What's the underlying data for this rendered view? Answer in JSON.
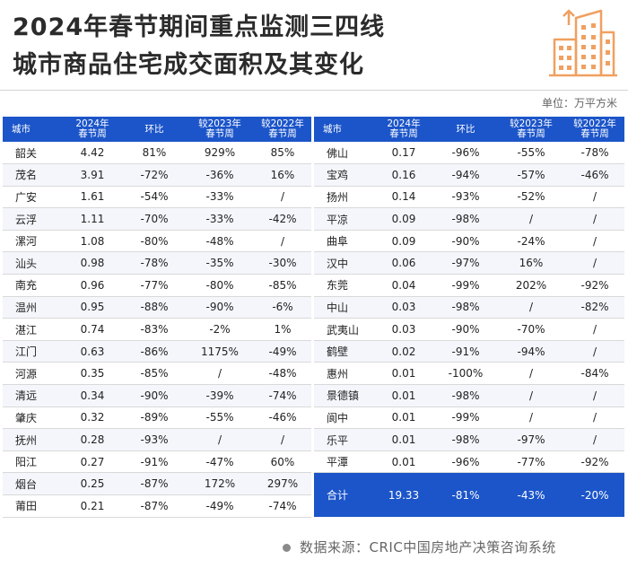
{
  "title_line1": "2024年春节期间重点监测三四线",
  "title_line2": "城市商品住宅成交面积及其变化",
  "unit": "单位：万平方米",
  "headers": [
    "城市",
    "2024年\n春节周",
    "环比",
    "较2023年\n春节周",
    "较2022年\n春节周"
  ],
  "left_rows": [
    [
      "韶关",
      "4.42",
      "81%",
      "929%",
      "85%"
    ],
    [
      "茂名",
      "3.91",
      "-72%",
      "-36%",
      "16%"
    ],
    [
      "广安",
      "1.61",
      "-54%",
      "-33%",
      "/"
    ],
    [
      "云浮",
      "1.11",
      "-70%",
      "-33%",
      "-42%"
    ],
    [
      "漯河",
      "1.08",
      "-80%",
      "-48%",
      "/"
    ],
    [
      "汕头",
      "0.98",
      "-78%",
      "-35%",
      "-30%"
    ],
    [
      "南充",
      "0.96",
      "-77%",
      "-80%",
      "-85%"
    ],
    [
      "温州",
      "0.95",
      "-88%",
      "-90%",
      "-6%"
    ],
    [
      "湛江",
      "0.74",
      "-83%",
      "-2%",
      "1%"
    ],
    [
      "江门",
      "0.63",
      "-86%",
      "1175%",
      "-49%"
    ],
    [
      "河源",
      "0.35",
      "-85%",
      "/",
      "-48%"
    ],
    [
      "清远",
      "0.34",
      "-90%",
      "-39%",
      "-74%"
    ],
    [
      "肇庆",
      "0.32",
      "-89%",
      "-55%",
      "-46%"
    ],
    [
      "抚州",
      "0.28",
      "-93%",
      "/",
      "/"
    ],
    [
      "阳江",
      "0.27",
      "-91%",
      "-47%",
      "60%"
    ],
    [
      "烟台",
      "0.25",
      "-87%",
      "172%",
      "297%"
    ],
    [
      "莆田",
      "0.21",
      "-87%",
      "-49%",
      "-74%"
    ]
  ],
  "right_rows": [
    [
      "佛山",
      "0.17",
      "-96%",
      "-55%",
      "-78%"
    ],
    [
      "宝鸡",
      "0.16",
      "-94%",
      "-57%",
      "-46%"
    ],
    [
      "扬州",
      "0.14",
      "-93%",
      "-52%",
      "/"
    ],
    [
      "平凉",
      "0.09",
      "-98%",
      "/",
      "/"
    ],
    [
      "曲阜",
      "0.09",
      "-90%",
      "-24%",
      "/"
    ],
    [
      "汉中",
      "0.06",
      "-97%",
      "16%",
      "/"
    ],
    [
      "东莞",
      "0.04",
      "-99%",
      "202%",
      "-92%"
    ],
    [
      "中山",
      "0.03",
      "-98%",
      "/",
      "-82%"
    ],
    [
      "武夷山",
      "0.03",
      "-90%",
      "-70%",
      "/"
    ],
    [
      "鹤壁",
      "0.02",
      "-91%",
      "-94%",
      "/"
    ],
    [
      "惠州",
      "0.01",
      "-100%",
      "/",
      "-84%"
    ],
    [
      "景德镇",
      "0.01",
      "-98%",
      "/",
      "/"
    ],
    [
      "阆中",
      "0.01",
      "-99%",
      "/",
      "/"
    ],
    [
      "乐平",
      "0.01",
      "-98%",
      "-97%",
      "/"
    ],
    [
      "平潭",
      "0.01",
      "-96%",
      "-77%",
      "-92%"
    ]
  ],
  "total_row": [
    "合计",
    "19.33",
    "-81%",
    "-43%",
    "-20%"
  ],
  "source": "数据来源：CRIC中国房地产决策咨询系统",
  "colors": {
    "header_blue": "#1c55c9",
    "icon_orange": "#f0a060"
  },
  "icons": [
    "building-icon"
  ]
}
